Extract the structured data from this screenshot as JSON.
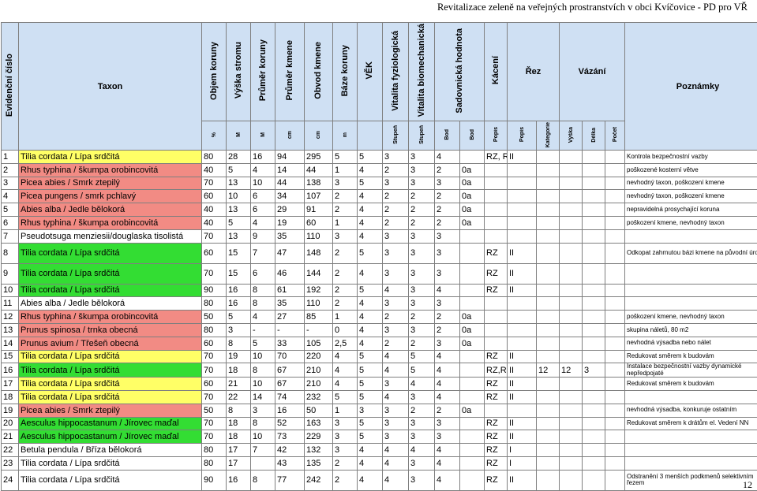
{
  "header_text": "Revitalizace zeleně na veřejných prostranstvích v obci Kvíčovice - PD pro VŘ",
  "page_number": "12",
  "colors": {
    "yellow": "#ffff66",
    "pink": "#f28b84",
    "green": "#33dd33",
    "header": "#cfe0f3"
  },
  "columns": {
    "evid": "Evidenční číslo",
    "taxon": "Taxon",
    "objem": "Objem koruny",
    "vyska": "Výška stromu",
    "prumer_koruny": "Průměr koruny",
    "prumer_kmene": "Průměr kmene",
    "obvod_kmene": "Obvod kmene",
    "baze_koruny": "Báze koruny",
    "vek": "VĚK",
    "vit_fyz": "Vitalita fyziologická",
    "vit_bio": "Vitalita biomechanická",
    "sadovnicka": "Sadovnická hodnota",
    "kaceni": "Kácení",
    "rez": "Řez",
    "vazani": "Vázání",
    "poznamky": "Poznámky"
  },
  "units": {
    "objem": "%",
    "vyska": "M",
    "prumer_koruny": "M",
    "prumer_kmene": "cm",
    "obvod_kmene": "cm",
    "baze_koruny": "m",
    "vit_fyz": "Stupeň",
    "vit_bio": "Stupeň",
    "sadovnicka": "Bod",
    "sad2": "Bod",
    "kaceni": "Popis",
    "rez_popis": "Popis",
    "rez_kat": "Kategorie",
    "vaz_vyska": "Výška",
    "vaz_delka": "Délka",
    "vaz_pocet": "Počet"
  },
  "rows": [
    {
      "n": "1",
      "taxon": "Tilia cordata / Lípa srdčitá",
      "color": "yellow",
      "v": [
        "80",
        "28",
        "16",
        "94",
        "295",
        "5",
        "5",
        "3",
        "3",
        "4",
        "",
        "RZ, RR",
        "II",
        "",
        "",
        "",
        ""
      ],
      "note": "Kontrola bezpečnostní vazby"
    },
    {
      "n": "2",
      "taxon": "Rhus typhina / škumpa orobincovitá",
      "color": "pink",
      "v": [
        "40",
        "5",
        "4",
        "14",
        "44",
        "1",
        "4",
        "2",
        "3",
        "2",
        "0a",
        "",
        "",
        "",
        "",
        "",
        ""
      ],
      "note": "poškozené kosterní větve"
    },
    {
      "n": "3",
      "taxon": "Picea abies / Smrk ztepilý",
      "color": "pink",
      "v": [
        "70",
        "13",
        "10",
        "44",
        "138",
        "3",
        "5",
        "3",
        "3",
        "3",
        "0a",
        "",
        "",
        "",
        "",
        "",
        ""
      ],
      "note": "nevhodný taxon, poškození kmene"
    },
    {
      "n": "4",
      "taxon": "Picea pungens / smrk pchlavý",
      "color": "pink",
      "v": [
        "60",
        "10",
        "6",
        "34",
        "107",
        "2",
        "4",
        "2",
        "2",
        "2",
        "0a",
        "",
        "",
        "",
        "",
        "",
        ""
      ],
      "note": "nevhodný taxon, poškození kmene"
    },
    {
      "n": "5",
      "taxon": "Abies alba / Jedle bělokorá",
      "color": "pink",
      "v": [
        "40",
        "13",
        "6",
        "29",
        "91",
        "2",
        "4",
        "2",
        "2",
        "2",
        "0a",
        "",
        "",
        "",
        "",
        "",
        ""
      ],
      "note": "nepravidelná prosychající koruna"
    },
    {
      "n": "6",
      "taxon": "Rhus typhina / škumpa orobincovitá",
      "color": "pink",
      "v": [
        "40",
        "5",
        "4",
        "19",
        "60",
        "1",
        "4",
        "2",
        "2",
        "2",
        "0a",
        "",
        "",
        "",
        "",
        "",
        ""
      ],
      "note": "poškození kmene, nevhodný taxon"
    },
    {
      "n": "7",
      "taxon": "Pseudotsuga menziesii/douglaska tisolistá",
      "color": "white",
      "v": [
        "70",
        "13",
        "9",
        "35",
        "110",
        "3",
        "4",
        "3",
        "3",
        "3",
        "",
        "",
        "",
        "",
        "",
        "",
        ""
      ],
      "note": ""
    },
    {
      "n": "8",
      "taxon": "Tilia cordata / Lípa srdčitá",
      "color": "green",
      "tall": true,
      "v": [
        "60",
        "15",
        "7",
        "47",
        "148",
        "2",
        "5",
        "3",
        "3",
        "3",
        "",
        "RZ",
        "II",
        "",
        "",
        "",
        ""
      ],
      "note": "Odkopat zahrnutou bázi kmene na původní úroveň"
    },
    {
      "n": "9",
      "taxon": "Tilia cordata / Lípa srdčitá",
      "color": "green",
      "tall": true,
      "v": [
        "70",
        "15",
        "6",
        "46",
        "144",
        "2",
        "4",
        "3",
        "3",
        "3",
        "",
        "RZ",
        "II",
        "",
        "",
        "",
        ""
      ],
      "note": ""
    },
    {
      "n": "10",
      "taxon": "Tilia cordata / Lípa srdčitá",
      "color": "green",
      "v": [
        "90",
        "16",
        "8",
        "61",
        "192",
        "2",
        "5",
        "4",
        "3",
        "4",
        "",
        "RZ",
        "II",
        "",
        "",
        "",
        ""
      ],
      "note": ""
    },
    {
      "n": "11",
      "taxon": "Abies alba / Jedle bělokorá",
      "color": "white",
      "v": [
        "80",
        "16",
        "8",
        "35",
        "110",
        "2",
        "4",
        "3",
        "3",
        "3",
        "",
        "",
        "",
        "",
        "",
        "",
        ""
      ],
      "note": ""
    },
    {
      "n": "12",
      "taxon": "Rhus typhina / škumpa orobincovitá",
      "color": "pink",
      "v": [
        "50",
        "5",
        "4",
        "27",
        "85",
        "1",
        "4",
        "2",
        "2",
        "2",
        "0a",
        "",
        "",
        "",
        "",
        "",
        ""
      ],
      "note": "poškození kmene, nevhodný taxon"
    },
    {
      "n": "13",
      "taxon": "Prunus spinosa / trnka obecná",
      "color": "pink",
      "v": [
        "80",
        "3",
        "-",
        "-",
        "-",
        "0",
        "4",
        "3",
        "3",
        "2",
        "0a",
        "",
        "",
        "",
        "",
        "",
        ""
      ],
      "note": "skupina náletů, 80 m2"
    },
    {
      "n": "14",
      "taxon": "Prunus avium / Třešeň obecná",
      "color": "pink",
      "v": [
        "60",
        "8",
        "5",
        "33",
        "105",
        "2,5",
        "4",
        "2",
        "2",
        "3",
        "0a",
        "",
        "",
        "",
        "",
        "",
        ""
      ],
      "note": "nevhodná výsadba nebo nálet"
    },
    {
      "n": "15",
      "taxon": "Tilia cordata / Lípa srdčitá",
      "color": "yellow",
      "v": [
        "70",
        "19",
        "10",
        "70",
        "220",
        "4",
        "5",
        "4",
        "5",
        "4",
        "",
        "RZ",
        "II",
        "",
        "",
        "",
        ""
      ],
      "note": "Redukovat směrem k budovám"
    },
    {
      "n": "16",
      "taxon": "Tilia cordata / Lípa srdčitá",
      "color": "green",
      "v": [
        "70",
        "18",
        "8",
        "67",
        "210",
        "4",
        "5",
        "4",
        "5",
        "4",
        "",
        "RZ,RR",
        "II",
        "12",
        "12",
        "3",
        ""
      ],
      "note": "Instalace bezpečnostní vazby dynamické nepředpojaté"
    },
    {
      "n": "17",
      "taxon": "Tilia cordata / Lípa srdčitá",
      "color": "yellow",
      "v": [
        "60",
        "21",
        "10",
        "67",
        "210",
        "4",
        "5",
        "3",
        "4",
        "4",
        "",
        "RZ",
        "II",
        "",
        "",
        "",
        ""
      ],
      "note": "Redukovat směrem k budovám"
    },
    {
      "n": "18",
      "taxon": "Tilia cordata / Lípa srdčitá",
      "color": "yellow",
      "v": [
        "70",
        "22",
        "14",
        "74",
        "232",
        "5",
        "5",
        "4",
        "3",
        "4",
        "",
        "RZ",
        "II",
        "",
        "",
        "",
        ""
      ],
      "note": ""
    },
    {
      "n": "19",
      "taxon": "Picea abies / Smrk ztepilý",
      "color": "pink",
      "v": [
        "50",
        "8",
        "3",
        "16",
        "50",
        "1",
        "3",
        "3",
        "2",
        "2",
        "0a",
        "",
        "",
        "",
        "",
        "",
        ""
      ],
      "note": "nevhodná výsadba, konkuruje ostatním"
    },
    {
      "n": "20",
      "taxon": "Aesculus hippocastanum / Jírovec maďal",
      "color": "green",
      "v": [
        "70",
        "18",
        "8",
        "52",
        "163",
        "3",
        "5",
        "3",
        "3",
        "3",
        "",
        "RZ",
        "II",
        "",
        "",
        "",
        ""
      ],
      "note": "Redukovat směrem k drátům el. Vedení NN"
    },
    {
      "n": "21",
      "taxon": "Aesculus hippocastanum / Jírovec maďal",
      "color": "green",
      "v": [
        "70",
        "18",
        "10",
        "73",
        "229",
        "3",
        "5",
        "3",
        "3",
        "3",
        "",
        "RZ",
        "II",
        "",
        "",
        "",
        ""
      ],
      "note": ""
    },
    {
      "n": "22",
      "taxon": "Betula pendula / Bříza bělokorá",
      "color": "white",
      "v": [
        "80",
        "17",
        "7",
        "42",
        "132",
        "3",
        "4",
        "4",
        "4",
        "4",
        "",
        "RZ",
        "I",
        "",
        "",
        "",
        ""
      ],
      "note": ""
    },
    {
      "n": "23",
      "taxon": "Tilia cordata / Lípa srdčitá",
      "color": "white",
      "v": [
        "80",
        "17",
        "",
        "43",
        "135",
        "2",
        "4",
        "4",
        "3",
        "4",
        "",
        "RZ",
        "I",
        "",
        "",
        "",
        ""
      ],
      "note": ""
    },
    {
      "n": "24",
      "taxon": "Tilia cordata / Lípa srdčitá",
      "color": "white",
      "tall": true,
      "v": [
        "90",
        "16",
        "8",
        "77",
        "242",
        "2",
        "4",
        "4",
        "3",
        "4",
        "",
        "RZ",
        "II",
        "",
        "",
        "",
        ""
      ],
      "note": "Odstranění 3 menších podkmenů selektivním řezem"
    }
  ]
}
